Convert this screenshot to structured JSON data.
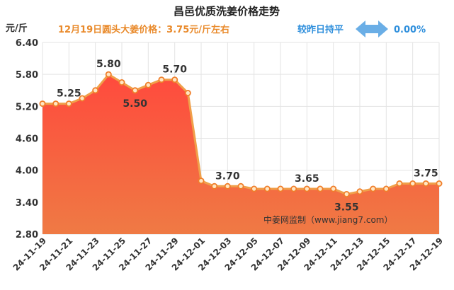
{
  "header": {
    "title": "昌邑优质洗姜价格走势",
    "subtitle": "12月19日圆头大姜价格：3.75元/斤左右",
    "compare_label": "较昨日持平",
    "change": "0.00%"
  },
  "source_note": "中姜网监制（www.jiang7.com）",
  "colors": {
    "line": "#f0a04a",
    "area_top": "#ff4a3d",
    "area_bottom": "#ef7a44",
    "grid": "#e3e3e3",
    "arrow": "#6aaee6",
    "marker_stroke": "#f07e2a",
    "marker_fill": "#ffe6c2"
  },
  "chart_data": {
    "type": "area",
    "title": "昌邑优质洗姜价格走势",
    "ylabel": "元/斤",
    "ylim": [
      2.8,
      6.4
    ],
    "yticks": [
      "2.80",
      "3.40",
      "4.00",
      "4.60",
      "5.20",
      "5.80",
      "6.40"
    ],
    "grid": true,
    "x": [
      "24-11-19",
      "24-11-20",
      "24-11-21",
      "24-11-22",
      "24-11-23",
      "24-11-24",
      "24-11-25",
      "24-11-26",
      "24-11-27",
      "24-11-28",
      "24-11-29",
      "24-11-30",
      "24-12-01",
      "24-12-02",
      "24-12-03",
      "24-12-04",
      "24-12-05",
      "24-12-06",
      "24-12-07",
      "24-12-08",
      "24-12-09",
      "24-12-10",
      "24-12-11",
      "24-12-12",
      "24-12-13",
      "24-12-14",
      "24-12-15",
      "24-12-16",
      "24-12-17",
      "24-12-18",
      "24-12-19"
    ],
    "xtick_labels": [
      "24-11-19",
      "24-11-21",
      "24-11-23",
      "24-11-25",
      "24-11-27",
      "24-11-29",
      "24-12-01",
      "24-12-03",
      "24-12-05",
      "24-12-07",
      "24-12-09",
      "24-12-11",
      "24-12-13",
      "24-12-15",
      "24-12-17",
      "24-12-19"
    ],
    "values": [
      5.25,
      5.25,
      5.25,
      5.35,
      5.5,
      5.8,
      5.65,
      5.5,
      5.6,
      5.7,
      5.7,
      5.45,
      3.8,
      3.7,
      3.7,
      3.7,
      3.65,
      3.65,
      3.65,
      3.65,
      3.65,
      3.65,
      3.65,
      3.55,
      3.6,
      3.65,
      3.65,
      3.75,
      3.75,
      3.75,
      3.75
    ],
    "data_labels": [
      {
        "x": "24-11-21",
        "text": "5.25",
        "position": "above"
      },
      {
        "x": "24-11-24",
        "text": "5.80",
        "position": "above"
      },
      {
        "x": "24-11-26",
        "text": "5.50",
        "position": "below"
      },
      {
        "x": "24-11-29",
        "text": "5.70",
        "position": "above"
      },
      {
        "x": "24-12-03",
        "text": "3.70",
        "position": "above"
      },
      {
        "x": "24-12-09",
        "text": "3.65",
        "position": "above"
      },
      {
        "x": "24-12-12",
        "text": "3.55",
        "position": "below"
      },
      {
        "x": "24-12-18",
        "text": "3.75",
        "position": "above"
      }
    ]
  }
}
